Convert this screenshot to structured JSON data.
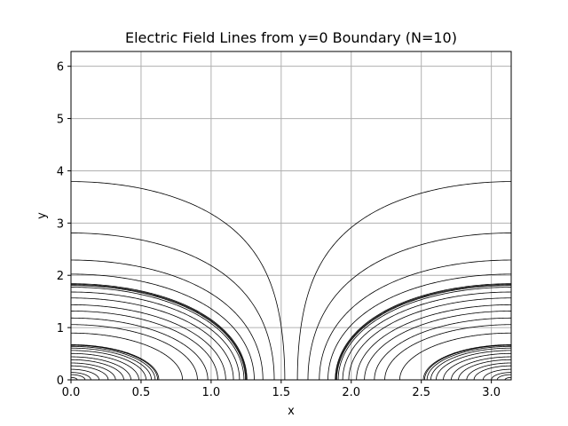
{
  "chart_data": {
    "type": "line",
    "title": "Electric Field Lines from y=0 Boundary (N=10)",
    "xlabel": "x",
    "ylabel": "y",
    "xlim": [
      0,
      3.14159
    ],
    "ylim": [
      0,
      6.28318
    ],
    "xticks": [
      "0.0",
      "0.5",
      "1.0",
      "1.5",
      "2.0",
      "2.5",
      "3.0"
    ],
    "yticks": [
      "0",
      "1",
      "2",
      "3",
      "4",
      "5",
      "6"
    ],
    "grid": true,
    "line_color": "#000000",
    "grid_color": "#b0b0b0",
    "family": "Field lines of the form y = acosh(c / |cos x|) for |cos x| ≤ c, mirrored about x = π/2",
    "series": [
      {
        "c": 0.999,
        "x_end_left": 0.045
      },
      {
        "c": 0.995,
        "x_end_left": 0.1
      },
      {
        "c": 0.99,
        "x_end_left": 0.14
      },
      {
        "c": 0.98,
        "x_end_left": 0.2
      },
      {
        "c": 0.965,
        "x_end_left": 0.265
      },
      {
        "c": 0.95,
        "x_end_left": 0.318
      },
      {
        "c": 0.93,
        "x_end_left": 0.376
      },
      {
        "c": 0.91,
        "x_end_left": 0.427
      },
      {
        "c": 0.885,
        "x_end_left": 0.483
      },
      {
        "c": 0.86,
        "x_end_left": 0.535
      },
      {
        "c": 0.84,
        "x_end_left": 0.573
      },
      {
        "c": 0.825,
        "x_end_left": 0.601
      },
      {
        "c": 0.815,
        "x_end_left": 0.619
      },
      {
        "c": 0.81,
        "x_end_left": 0.627
      },
      {
        "c": 0.7,
        "x_end_left": 0.795
      },
      {
        "c": 0.62,
        "x_end_left": 0.902
      },
      {
        "c": 0.56,
        "x_end_left": 0.976
      },
      {
        "c": 0.5,
        "x_end_left": 1.047
      },
      {
        "c": 0.45,
        "x_end_left": 1.104
      },
      {
        "c": 0.4,
        "x_end_left": 1.159
      },
      {
        "c": 0.36,
        "x_end_left": 1.202
      },
      {
        "c": 0.33,
        "x_end_left": 1.234
      },
      {
        "c": 0.32,
        "x_end_left": 1.245
      },
      {
        "c": 0.315,
        "x_end_left": 1.25
      },
      {
        "c": 0.31,
        "x_end_left": 1.255
      },
      {
        "c": 0.26,
        "x_end_left": 1.308
      },
      {
        "c": 0.2,
        "x_end_left": 1.369
      },
      {
        "c": 0.12,
        "x_end_left": 1.451
      },
      {
        "c": 0.045,
        "x_end_left": 1.526
      }
    ]
  }
}
